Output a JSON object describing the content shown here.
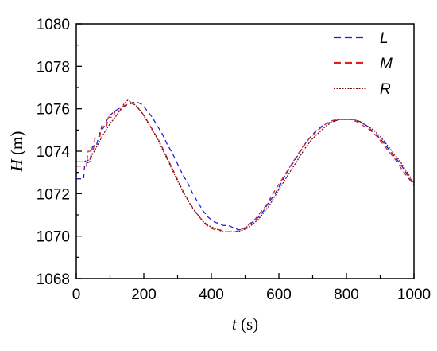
{
  "chart_data": {
    "type": "line",
    "title": "",
    "xlabel": {
      "var": "t",
      "unit": " (s)"
    },
    "ylabel": {
      "var": "H",
      "unit": " (m)"
    },
    "xlim": [
      0,
      1000
    ],
    "ylim": [
      1068,
      1080
    ],
    "xticks": [
      0,
      200,
      400,
      600,
      800,
      1000
    ],
    "yticks": [
      1068,
      1070,
      1072,
      1074,
      1076,
      1078,
      1080
    ],
    "grid": false,
    "legend_position": "top-right",
    "series": [
      {
        "name": "L",
        "color": "#1f1fe0",
        "dash": "dashed",
        "x": [
          0,
          10,
          22,
          25,
          40,
          48,
          60,
          70,
          80,
          92,
          100,
          115,
          125,
          140,
          155,
          170,
          182,
          195,
          210,
          225,
          240,
          255,
          270,
          285,
          300,
          315,
          330,
          345,
          360,
          375,
          390,
          405,
          420,
          435,
          450,
          465,
          480,
          495,
          510,
          525,
          540,
          555,
          570,
          585,
          600,
          620,
          640,
          660,
          680,
          700,
          720,
          740,
          760,
          780,
          800,
          820,
          840,
          860,
          880,
          900,
          920,
          940,
          960,
          980,
          1000
        ],
        "y": [
          1072.7,
          1072.7,
          1072.7,
          1073.4,
          1073.5,
          1074.2,
          1074.3,
          1074.9,
          1075.1,
          1075.5,
          1075.7,
          1075.9,
          1076.0,
          1076.1,
          1076.2,
          1076.3,
          1076.3,
          1076.2,
          1075.9,
          1075.6,
          1075.2,
          1074.8,
          1074.3,
          1073.9,
          1073.4,
          1072.9,
          1072.5,
          1072.0,
          1071.6,
          1071.2,
          1070.9,
          1070.7,
          1070.6,
          1070.5,
          1070.5,
          1070.4,
          1070.3,
          1070.3,
          1070.5,
          1070.7,
          1070.9,
          1071.2,
          1071.6,
          1071.9,
          1072.3,
          1072.9,
          1073.4,
          1073.9,
          1074.4,
          1074.8,
          1075.1,
          1075.3,
          1075.4,
          1075.5,
          1075.5,
          1075.5,
          1075.4,
          1075.2,
          1074.9,
          1074.6,
          1074.2,
          1073.8,
          1073.4,
          1072.9,
          1072.4
        ]
      },
      {
        "name": "M",
        "color": "#e02020",
        "dash": "dashed",
        "x": [
          0,
          10,
          15,
          30,
          35,
          50,
          55,
          70,
          75,
          90,
          95,
          110,
          115,
          130,
          135,
          150,
          160,
          170,
          185,
          200,
          215,
          230,
          245,
          260,
          275,
          290,
          305,
          320,
          335,
          350,
          365,
          380,
          395,
          410,
          425,
          440,
          455,
          470,
          485,
          500,
          515,
          530,
          545,
          560,
          575,
          590,
          610,
          630,
          650,
          670,
          690,
          710,
          730,
          750,
          770,
          790,
          810,
          830,
          850,
          870,
          890,
          910,
          930,
          950,
          970,
          1000
        ],
        "y": [
          1073.3,
          1073.3,
          1073.3,
          1073.3,
          1074.0,
          1074.0,
          1074.6,
          1074.7,
          1075.2,
          1075.2,
          1075.6,
          1075.6,
          1075.9,
          1075.9,
          1076.1,
          1076.2,
          1076.3,
          1076.2,
          1076.0,
          1075.7,
          1075.3,
          1074.9,
          1074.5,
          1074.0,
          1073.5,
          1073.0,
          1072.5,
          1072.0,
          1071.6,
          1071.2,
          1070.9,
          1070.6,
          1070.4,
          1070.3,
          1070.3,
          1070.2,
          1070.2,
          1070.2,
          1070.3,
          1070.4,
          1070.6,
          1070.8,
          1071.1,
          1071.4,
          1071.8,
          1072.2,
          1072.7,
          1073.2,
          1073.7,
          1074.2,
          1074.6,
          1074.9,
          1075.2,
          1075.4,
          1075.5,
          1075.5,
          1075.5,
          1075.4,
          1075.2,
          1075.0,
          1074.7,
          1074.3,
          1073.9,
          1073.5,
          1073.0,
          1072.4
        ]
      },
      {
        "name": "R",
        "color": "#7a1010",
        "dash": "dotted",
        "x": [
          0,
          20,
          20,
          40,
          40,
          60,
          60,
          80,
          80,
          100,
          100,
          120,
          120,
          140,
          152,
          165,
          180,
          195,
          210,
          225,
          240,
          255,
          270,
          285,
          300,
          315,
          330,
          345,
          360,
          375,
          390,
          405,
          420,
          435,
          450,
          465,
          480,
          495,
          510,
          525,
          540,
          555,
          570,
          585,
          600,
          620,
          640,
          660,
          680,
          700,
          720,
          740,
          760,
          780,
          800,
          820,
          840,
          860,
          880,
          900,
          920,
          940,
          960,
          980,
          1000
        ],
        "y": [
          1073.5,
          1073.5,
          1073.5,
          1073.6,
          1073.6,
          1074.2,
          1074.2,
          1074.8,
          1074.8,
          1075.3,
          1075.3,
          1075.7,
          1075.7,
          1076.2,
          1076.4,
          1076.3,
          1076.1,
          1075.8,
          1075.4,
          1075.0,
          1074.6,
          1074.1,
          1073.6,
          1073.1,
          1072.6,
          1072.1,
          1071.7,
          1071.3,
          1071.0,
          1070.7,
          1070.5,
          1070.4,
          1070.3,
          1070.2,
          1070.2,
          1070.2,
          1070.2,
          1070.3,
          1070.4,
          1070.6,
          1070.8,
          1071.1,
          1071.4,
          1071.8,
          1072.2,
          1072.7,
          1073.2,
          1073.7,
          1074.2,
          1074.6,
          1074.9,
          1075.2,
          1075.4,
          1075.5,
          1075.5,
          1075.5,
          1075.4,
          1075.2,
          1075.0,
          1074.7,
          1074.3,
          1073.9,
          1073.5,
          1073.0,
          1072.5
        ]
      }
    ]
  }
}
